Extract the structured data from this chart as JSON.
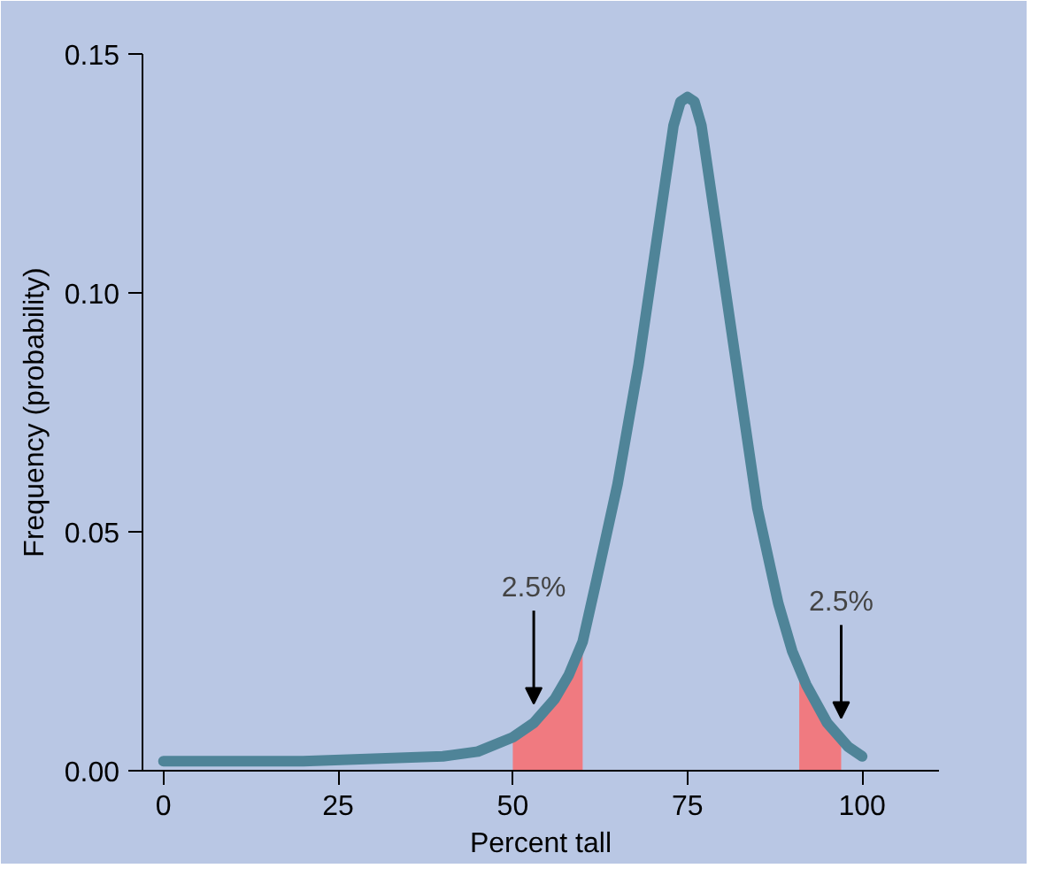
{
  "chart_data": {
    "type": "line",
    "xlabel": "Percent tall",
    "ylabel": "Frequency (probability)",
    "xlim": [
      -3,
      111
    ],
    "ylim": [
      0,
      0.15
    ],
    "xticks": [
      0,
      25,
      50,
      75,
      100
    ],
    "yticks": [
      {
        "value": 0,
        "label": "0.00"
      },
      {
        "value": 0.05,
        "label": "0.05"
      },
      {
        "value": 0.1,
        "label": "0.10"
      },
      {
        "value": 0.15,
        "label": "0.15"
      }
    ],
    "grid": false,
    "series": [
      {
        "type": "area",
        "color": "#f07a80",
        "x": [
          50,
          52,
          54,
          56,
          58,
          60
        ],
        "values": [
          0.007,
          0.009,
          0.012,
          0.015,
          0.02,
          0.027
        ]
      },
      {
        "type": "area",
        "color": "#f07a80",
        "x": [
          91,
          92,
          94,
          96,
          97
        ],
        "values": [
          0.021,
          0.018,
          0.013,
          0.009,
          0.008
        ]
      },
      {
        "color": "#4f8498",
        "x": [
          0,
          20,
          40,
          45,
          50,
          53,
          56,
          58,
          60,
          62,
          65,
          68,
          71,
          73,
          74,
          75,
          76,
          77,
          79,
          82,
          85,
          88,
          90,
          92,
          95,
          98,
          100
        ],
        "values": [
          0.002,
          0.002,
          0.003,
          0.004,
          0.007,
          0.01,
          0.015,
          0.02,
          0.027,
          0.04,
          0.06,
          0.085,
          0.115,
          0.135,
          0.14,
          0.141,
          0.14,
          0.135,
          0.115,
          0.085,
          0.055,
          0.035,
          0.025,
          0.018,
          0.01,
          0.005,
          0.003
        ]
      }
    ],
    "annotations": [
      {
        "text": "2.5%",
        "x": 53,
        "y": 0.014
      },
      {
        "text": "2.5%",
        "x": 97,
        "y": 0.011
      }
    ]
  }
}
